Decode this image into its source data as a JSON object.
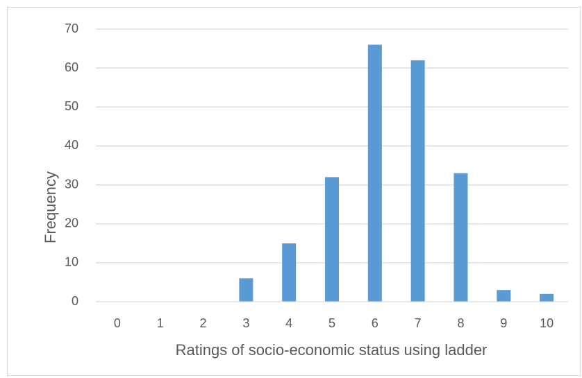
{
  "chart_data": {
    "type": "bar",
    "title": "",
    "xlabel": "Ratings of socio-economic status using ladder",
    "ylabel": "Frequency",
    "categories": [
      "0",
      "1",
      "2",
      "3",
      "4",
      "5",
      "6",
      "7",
      "8",
      "9",
      "10"
    ],
    "values": [
      0,
      0,
      0,
      6,
      15,
      32,
      66,
      62,
      33,
      3,
      2
    ],
    "ylim": [
      0,
      70
    ],
    "yticks": [
      0,
      10,
      20,
      30,
      40,
      50,
      60,
      70
    ],
    "grid": true,
    "legend": "none",
    "bar_color": "#5b9bd5",
    "grid_color": "#d9d9d9",
    "text_color": "#595959"
  }
}
